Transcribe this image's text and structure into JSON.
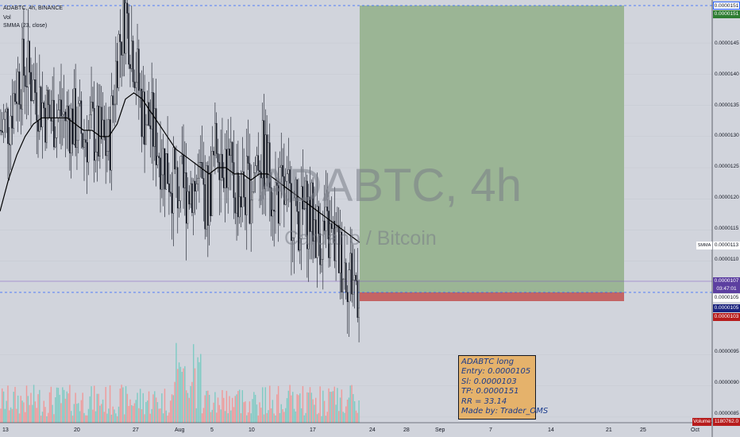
{
  "legend": {
    "symbol": "ADABTC, 4h, BINANCE",
    "vol": "Vol",
    "smma": "SMMA (23, close)"
  },
  "watermark": {
    "title": "ADABTC, 4h",
    "subtitle": "Cardano / Bitcoin"
  },
  "note": {
    "lines": [
      "ADABTC long",
      "Entry: 0.0000105",
      "Sl: 0.0000103",
      "TP: 0.0000151",
      "RR = 33.14",
      "Made by: Trader_OMS"
    ]
  },
  "price_labels": {
    "tp_top": "0.0000151",
    "tp": "0.0000151",
    "smma_tag": "SMMA",
    "smma": "0.0000113",
    "current": "0.0000107",
    "countdown": "03:47:01",
    "entry": "0.0000105",
    "entry2": "0.0000105",
    "sl": "0.0000103",
    "volume_tag": "Volume",
    "volume": "1180762.0"
  },
  "colors": {
    "background": "#d1d4dc",
    "profit_zone": "#9bb595",
    "loss_zone": "#c46464",
    "up_candle": "#131722",
    "down_candle": "#131722",
    "smma_line": "#000000",
    "volume_up": "#ef9a9a",
    "volume_down": "#80cbc4",
    "tp_label": "#2e7d32",
    "entry_label": "#1a237e",
    "sl_label": "#b71c1c",
    "current_label": "#5c3fa0",
    "dashed_line": "#2962ff"
  },
  "chart_data": {
    "type": "candlestick",
    "title": "ADABTC, 4h",
    "subtitle": "Cardano / Bitcoin",
    "y_axis_ticks": [
      "0.0000145",
      "0.0000140",
      "0.0000135",
      "0.0000130",
      "0.0000125",
      "0.0000120",
      "0.0000115",
      "0.0000110",
      "0.0000095",
      "0.0000090",
      "0.0000085"
    ],
    "x_axis_ticks": [
      "13",
      "20",
      "27",
      "Aug",
      "5",
      "10",
      "17",
      "24",
      "28",
      "Sep",
      "7",
      "14",
      "21",
      "25",
      "Oct"
    ],
    "ylim": [
      8.4e-06,
      1.52e-05
    ],
    "position": {
      "side": "long",
      "entry": 1.05e-05,
      "stop_loss": 1.03e-05,
      "take_profit": 1.51e-05,
      "risk_reward": 33.14
    },
    "last_price": 1.07e-05,
    "smma_value": 1.13e-05,
    "close_path": [
      1.31e-05,
      1.33e-05,
      1.39e-05,
      1.41e-05,
      1.38e-05,
      1.35e-05,
      1.33e-05,
      1.34e-05,
      1.33e-05,
      1.32e-05,
      1.3e-05,
      1.31e-05,
      1.29e-05,
      1.28e-05,
      1.44e-05,
      1.5e-05,
      1.43e-05,
      1.34e-05,
      1.32e-05,
      1.28e-05,
      1.25e-05,
      1.22e-05,
      1.21e-05,
      1.23e-05,
      1.21e-05,
      1.2e-05,
      1.3e-05,
      1.26e-05,
      1.22e-05,
      1.21e-05,
      1.22e-05,
      1.28e-05,
      1.25e-05,
      1.21e-05,
      1.2e-05,
      1.19e-05,
      1.17e-05,
      1.18e-05,
      1.15e-05,
      1.14e-05,
      1.13e-05,
      1.1e-05,
      1.08e-05,
      1.06e-05
    ],
    "smma_path": [
      1.18e-05,
      1.23e-05,
      1.27e-05,
      1.3e-05,
      1.32e-05,
      1.33e-05,
      1.33e-05,
      1.33e-05,
      1.33e-05,
      1.32e-05,
      1.31e-05,
      1.31e-05,
      1.3e-05,
      1.3e-05,
      1.32e-05,
      1.36e-05,
      1.37e-05,
      1.36e-05,
      1.34e-05,
      1.32e-05,
      1.3e-05,
      1.28e-05,
      1.27e-05,
      1.26e-05,
      1.25e-05,
      1.24e-05,
      1.25e-05,
      1.25e-05,
      1.24e-05,
      1.24e-05,
      1.23e-05,
      1.24e-05,
      1.24e-05,
      1.23e-05,
      1.22e-05,
      1.21e-05,
      1.2e-05,
      1.19e-05,
      1.18e-05,
      1.17e-05,
      1.16e-05,
      1.15e-05,
      1.14e-05,
      1.13e-05
    ]
  }
}
